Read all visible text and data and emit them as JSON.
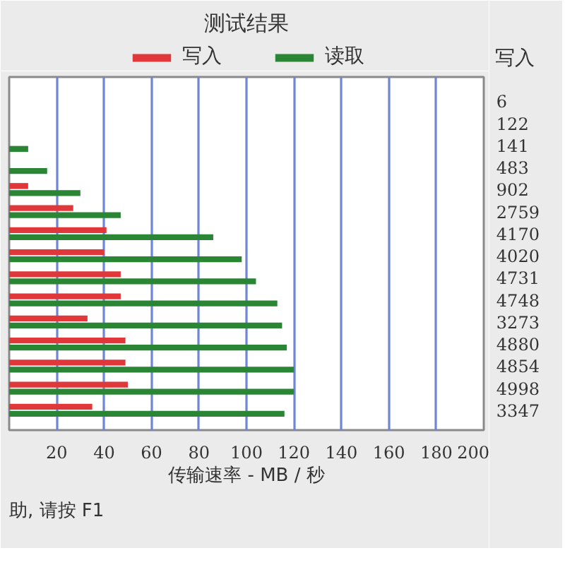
{
  "chart_data": [
    {
      "type": "bar",
      "orientation": "horizontal",
      "title": "测试结果",
      "xlabel": "传输速率 - MB / 秒",
      "categories": [
        null,
        null,
        null,
        null,
        null,
        null,
        null,
        null,
        null,
        null,
        null,
        null,
        null,
        null,
        null
      ],
      "series": [
        {
          "name": "写入",
          "color": "#e0383a",
          "values": [
            null,
            null,
            null,
            null,
            8,
            27,
            41,
            40,
            47,
            47,
            33,
            49,
            49,
            50,
            35
          ]
        },
        {
          "name": "读取",
          "color": "#2a8534",
          "values": [
            null,
            null,
            8,
            16,
            30,
            47,
            86,
            98,
            104,
            113,
            115,
            117,
            120,
            120,
            116
          ]
        }
      ],
      "xlim": [
        0,
        200
      ],
      "xticks": [
        20,
        40,
        60,
        80,
        100,
        120,
        140,
        160,
        180,
        200
      ],
      "grid": "x",
      "legend": "top",
      "annotations": [
        "助, 请按 F1"
      ]
    },
    {
      "type": "other",
      "title": "写入",
      "annotations": [
        "6",
        "122",
        "141",
        "483",
        "902",
        "2759",
        "4170",
        "4020",
        "4731",
        "4748",
        "3273",
        "4880",
        "4854",
        "4998",
        "3347"
      ]
    }
  ]
}
